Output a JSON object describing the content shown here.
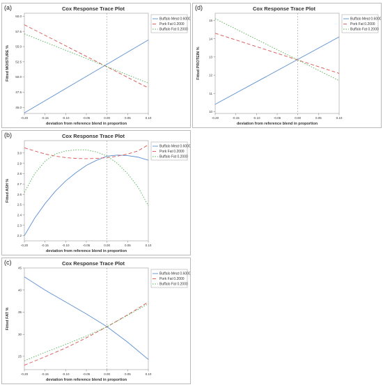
{
  "panels": [
    {
      "letter": "(a)",
      "chart_data": {
        "type": "line",
        "title": "Cox Response Trace Plot",
        "xlabel": "deviation from reference blend in proportion",
        "ylabel": "Fitted MOISTURE %",
        "xlim": [
          -0.2,
          0.1
        ],
        "ylim": [
          44.0,
          60.5
        ],
        "xticks": [
          -0.2,
          -0.15,
          -0.1,
          -0.05,
          0.0,
          0.05,
          0.1
        ],
        "xtick_labels": [
          "-0.20",
          "-0.15",
          "-0.10",
          "-0.05",
          "0.00",
          "0.05",
          "0.10"
        ],
        "yticks": [
          45.0,
          47.5,
          50.0,
          52.5,
          55.0,
          57.5,
          60.0
        ],
        "ytick_labels": [
          "45.0",
          "47.5",
          "50.0",
          "52.5",
          "55.0",
          "57.5",
          "60.0"
        ],
        "reference_line_x": 0,
        "legend_position": "top-right",
        "series": [
          {
            "name": "Buffalo Meat 0.6000",
            "color": "#5b8fd0",
            "dash": "",
            "x": [
              -0.2,
              0.1
            ],
            "y": [
              44.1,
              56.1
            ]
          },
          {
            "name": "Pork Fat 0.2000",
            "color": "#d9534f",
            "dash": "5,3",
            "x": [
              -0.2,
              0.1
            ],
            "y": [
              58.6,
              48.2
            ]
          },
          {
            "name": "Buffalo Fat 0.2000",
            "color": "#4caf50",
            "dash": "1.5,2",
            "x": [
              -0.2,
              0.1
            ],
            "y": [
              57.1,
              49.0
            ]
          }
        ]
      }
    },
    {
      "letter": "(d)",
      "chart_data": {
        "type": "line",
        "title": "Cox Response Trace Plot",
        "xlabel": "deviation from reference blend in proportion",
        "ylabel": "Fitted PROTEIN %",
        "xlim": [
          -0.2,
          0.1
        ],
        "ylim": [
          9.9,
          15.4
        ],
        "xticks": [
          -0.2,
          -0.15,
          -0.1,
          -0.05,
          0.0,
          0.05,
          0.1
        ],
        "xtick_labels": [
          "-0.20",
          "-0.15",
          "-0.10",
          "-0.05",
          "0.00",
          "0.05",
          "0.10"
        ],
        "yticks": [
          10,
          11,
          12,
          13,
          14,
          15
        ],
        "ytick_labels": [
          "10",
          "11",
          "12",
          "13",
          "14",
          "15"
        ],
        "reference_line_x": 0,
        "legend_position": "top-right",
        "series": [
          {
            "name": "Buffalo Meat 0.6000",
            "color": "#5b8fd0",
            "dash": "",
            "x": [
              -0.2,
              0.1
            ],
            "y": [
              10.4,
              14.1
            ]
          },
          {
            "name": "Pork Fat 0.2000",
            "color": "#d9534f",
            "dash": "5,3",
            "x": [
              -0.2,
              0.1
            ],
            "y": [
              14.3,
              12.1
            ]
          },
          {
            "name": "Buffalo Fat 0.2000",
            "color": "#4caf50",
            "dash": "1.5,2",
            "x": [
              -0.2,
              0.1
            ],
            "y": [
              15.1,
              11.7
            ]
          }
        ]
      }
    },
    {
      "letter": "(b)",
      "chart_data": {
        "type": "line",
        "title": "Cox Response Trace Plot",
        "xlabel": "deviation from reference blend in proportion",
        "ylabel": "Fitted ASH %",
        "xlim": [
          -0.2,
          0.1
        ],
        "ylim": [
          2.15,
          3.12
        ],
        "xticks": [
          -0.2,
          -0.15,
          -0.1,
          -0.05,
          0.0,
          0.05,
          0.1
        ],
        "xtick_labels": [
          "-0.20",
          "-0.15",
          "-0.10",
          "-0.05",
          "0.00",
          "0.05",
          "0.10"
        ],
        "yticks": [
          2.2,
          2.3,
          2.4,
          2.5,
          2.6,
          2.7,
          2.8,
          2.9,
          3.0
        ],
        "ytick_labels": [
          "2.2",
          "2.3",
          "2.4",
          "2.5",
          "2.6",
          "2.7",
          "2.8",
          "2.9",
          "3.0"
        ],
        "reference_line_x": 0,
        "legend_position": "top-right",
        "series": [
          {
            "name": "Buffalo Meat 0.6000",
            "color": "#5b8fd0",
            "dash": "",
            "x": [
              -0.2,
              -0.175,
              -0.15,
              -0.125,
              -0.1,
              -0.075,
              -0.05,
              -0.025,
              0,
              0.025,
              0.05,
              0.075,
              0.1
            ],
            "y": [
              2.2,
              2.37,
              2.51,
              2.63,
              2.73,
              2.81,
              2.88,
              2.93,
              2.97,
              2.98,
              2.975,
              2.96,
              2.93
            ]
          },
          {
            "name": "Pork Fat 0.2000",
            "color": "#d9534f",
            "dash": "5,3",
            "x": [
              -0.2,
              -0.175,
              -0.15,
              -0.125,
              -0.1,
              -0.075,
              -0.05,
              -0.025,
              0,
              0.025,
              0.05,
              0.075,
              0.1
            ],
            "y": [
              3.05,
              3.02,
              2.99,
              2.97,
              2.955,
              2.948,
              2.945,
              2.948,
              2.955,
              2.97,
              2.99,
              3.02,
              3.08
            ]
          },
          {
            "name": "Buffalo Fat 0.2000",
            "color": "#4caf50",
            "dash": "1.5,2",
            "x": [
              -0.2,
              -0.175,
              -0.15,
              -0.125,
              -0.1,
              -0.075,
              -0.05,
              -0.025,
              0,
              0.025,
              0.05,
              0.075,
              0.1
            ],
            "y": [
              2.62,
              2.8,
              2.92,
              2.99,
              3.02,
              3.03,
              3.03,
              3.01,
              2.97,
              2.9,
              2.8,
              2.67,
              2.49
            ]
          }
        ]
      }
    },
    {
      "letter": "(c)",
      "chart_data": {
        "type": "line",
        "title": "Cox Response Trace Plot",
        "xlabel": "deviation from reference blend in proportion",
        "ylabel": "Fitted FAT %",
        "xlim": [
          -0.2,
          0.1
        ],
        "ylim": [
          22,
          45
        ],
        "xticks": [
          -0.2,
          -0.15,
          -0.1,
          -0.05,
          0.0,
          0.05,
          0.1
        ],
        "xtick_labels": [
          "-0.20",
          "-0.15",
          "-0.10",
          "-0.05",
          "0.00",
          "0.05",
          "0.10"
        ],
        "yticks": [
          25,
          30,
          35,
          40,
          45
        ],
        "ytick_labels": [
          "25",
          "30",
          "35",
          "40",
          "45"
        ],
        "reference_line_x": 0,
        "legend_position": "top-right",
        "series": [
          {
            "name": "Buffalo Meat 0.6000",
            "color": "#5b8fd0",
            "dash": "",
            "x": [
              -0.2,
              -0.15,
              -0.1,
              -0.05,
              0,
              0.05,
              0.1
            ],
            "y": [
              43.0,
              40.0,
              37.3,
              34.6,
              31.7,
              28.2,
              24.3
            ]
          },
          {
            "name": "Pork Fat 0.2000",
            "color": "#d9534f",
            "dash": "5,3",
            "x": [
              -0.2,
              -0.15,
              -0.1,
              -0.05,
              0,
              0.05,
              0.1
            ],
            "y": [
              23.0,
              24.9,
              26.9,
              29.2,
              31.7,
              34.4,
              37.3
            ]
          },
          {
            "name": "Buffalo Fat 0.2000",
            "color": "#4caf50",
            "dash": "1.5,2",
            "x": [
              -0.2,
              -0.15,
              -0.1,
              -0.05,
              0,
              0.05,
              0.1
            ],
            "y": [
              24.0,
              25.9,
              27.7,
              29.6,
              31.7,
              34.3,
              36.9
            ]
          }
        ]
      }
    }
  ]
}
